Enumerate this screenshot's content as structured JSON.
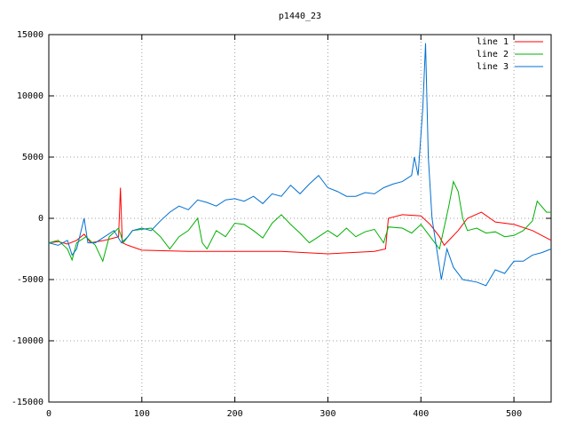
{
  "chart_data": {
    "type": "line",
    "title": "p1440_23",
    "xlim": [
      0,
      540
    ],
    "xticks": [
      0,
      100,
      200,
      300,
      400,
      500
    ],
    "ylim": [
      -15000,
      15000
    ],
    "yticks": [
      -15000,
      -10000,
      -5000,
      0,
      5000,
      10000,
      15000
    ],
    "grid": true,
    "legend": "top-right",
    "series": [
      {
        "name": "line 1",
        "color": "#ff0000",
        "x": [
          0,
          10,
          20,
          30,
          38,
          45,
          60,
          70,
          75,
          77,
          79,
          85,
          100,
          150,
          200,
          250,
          300,
          350,
          362,
          365,
          380,
          400,
          410,
          420,
          425,
          440,
          450,
          465,
          480,
          500,
          520,
          540
        ],
        "values": [
          -2000,
          -1900,
          -2100,
          -1800,
          -1300,
          -2000,
          -1800,
          -1600,
          -1500,
          2500,
          -2000,
          -2200,
          -2600,
          -2700,
          -2700,
          -2700,
          -2900,
          -2700,
          -2500,
          0,
          300,
          200,
          -500,
          -1500,
          -2200,
          -1000,
          0,
          500,
          -300,
          -500,
          -1000,
          -1800
        ]
      },
      {
        "name": "line 2",
        "color": "#00b000",
        "x": [
          0,
          10,
          20,
          25,
          30,
          40,
          50,
          58,
          65,
          75,
          80,
          90,
          100,
          110,
          120,
          130,
          140,
          150,
          160,
          165,
          170,
          180,
          190,
          200,
          210,
          220,
          230,
          240,
          250,
          260,
          270,
          280,
          290,
          300,
          310,
          320,
          330,
          340,
          350,
          360,
          365,
          380,
          390,
          400,
          410,
          420,
          430,
          435,
          440,
          445,
          450,
          460,
          470,
          480,
          490,
          500,
          510,
          520,
          525,
          535,
          540
        ],
        "values": [
          -2000,
          -1800,
          -2500,
          -3400,
          -2000,
          -1500,
          -2200,
          -3500,
          -1500,
          -800,
          -2000,
          -1000,
          -900,
          -800,
          -1500,
          -2500,
          -1500,
          -1000,
          0,
          -2000,
          -2500,
          -1000,
          -1500,
          -400,
          -500,
          -1000,
          -1600,
          -400,
          300,
          -500,
          -1200,
          -2000,
          -1500,
          -1000,
          -1500,
          -800,
          -1500,
          -1100,
          -900,
          -2000,
          -700,
          -800,
          -1200,
          -500,
          -1500,
          -2500,
          1000,
          3000,
          2200,
          0,
          -1000,
          -800,
          -1200,
          -1100,
          -1500,
          -1400,
          -1000,
          -200,
          1400,
          500,
          500
        ]
      },
      {
        "name": "line 3",
        "color": "#0070d0",
        "x": [
          0,
          10,
          20,
          25,
          30,
          38,
          42,
          50,
          60,
          70,
          78,
          85,
          90,
          100,
          110,
          120,
          130,
          140,
          150,
          160,
          170,
          180,
          190,
          200,
          210,
          220,
          230,
          240,
          250,
          260,
          270,
          280,
          290,
          300,
          310,
          320,
          330,
          340,
          350,
          360,
          370,
          380,
          390,
          393,
          397,
          402,
          405,
          408,
          412,
          418,
          422,
          428,
          435,
          445,
          460,
          470,
          480,
          490,
          500,
          510,
          520,
          530,
          540
        ],
        "values": [
          -2000,
          -2200,
          -1800,
          -3000,
          -2500,
          0,
          -2000,
          -2000,
          -1500,
          -1000,
          -2000,
          -1500,
          -1000,
          -800,
          -1000,
          -200,
          500,
          1000,
          700,
          1500,
          1300,
          1000,
          1500,
          1600,
          1400,
          1800,
          1200,
          2000,
          1800,
          2700,
          2000,
          2800,
          3500,
          2500,
          2200,
          1800,
          1800,
          2100,
          2000,
          2500,
          2800,
          3000,
          3500,
          5000,
          3500,
          9000,
          14300,
          5000,
          0,
          -3000,
          -5000,
          -2500,
          -4000,
          -5000,
          -5200,
          -5500,
          -4200,
          -4500,
          -3500,
          -3500,
          -3000,
          -2800,
          -2500
        ]
      }
    ]
  }
}
